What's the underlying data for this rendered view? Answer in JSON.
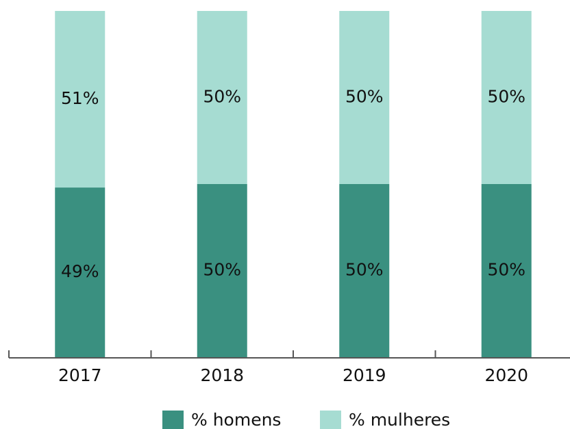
{
  "chart_data": {
    "type": "stacked_bar",
    "categories": [
      "2017",
      "2018",
      "2019",
      "2020"
    ],
    "series": [
      {
        "name": "% homens",
        "color": "#3a9080",
        "values": [
          49,
          50,
          50,
          50
        ],
        "value_labels": [
          "49%",
          "50%",
          "50%",
          "50%"
        ]
      },
      {
        "name": "% mulheres",
        "color": "#a6dcd2",
        "values": [
          51,
          50,
          50,
          50
        ],
        "value_labels": [
          "51%",
          "50%",
          "50%",
          "50%"
        ]
      }
    ],
    "ylim": [
      0,
      100
    ]
  }
}
